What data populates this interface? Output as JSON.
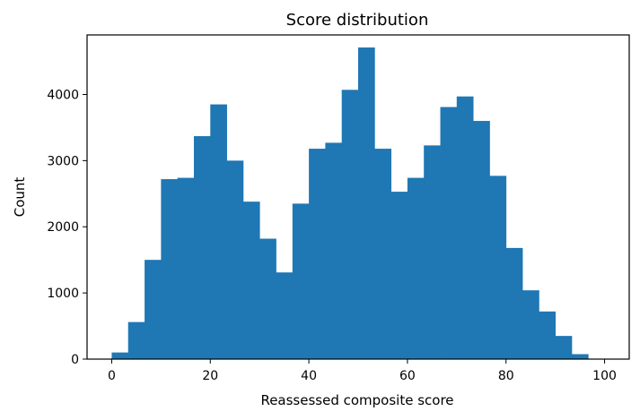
{
  "chart_data": {
    "type": "bar",
    "title": "Score distribution",
    "xlabel": "Reassessed composite score",
    "ylabel": "Count",
    "xlim": [
      -5,
      105
    ],
    "ylim": [
      0,
      4900
    ],
    "xticks": [
      0,
      20,
      40,
      60,
      80,
      100
    ],
    "yticks": [
      0,
      1000,
      2000,
      3000,
      4000
    ],
    "grid": false,
    "color": "#1f77b4",
    "bins": [
      {
        "x0": 0.0,
        "x1": 3.33,
        "count": 100
      },
      {
        "x0": 3.33,
        "x1": 6.67,
        "count": 560
      },
      {
        "x0": 6.67,
        "x1": 10.0,
        "count": 1500
      },
      {
        "x0": 10.0,
        "x1": 13.33,
        "count": 2720
      },
      {
        "x0": 13.33,
        "x1": 16.67,
        "count": 2740
      },
      {
        "x0": 16.67,
        "x1": 20.0,
        "count": 3370
      },
      {
        "x0": 20.0,
        "x1": 23.33,
        "count": 3850
      },
      {
        "x0": 23.33,
        "x1": 26.67,
        "count": 3000
      },
      {
        "x0": 26.67,
        "x1": 30.0,
        "count": 2380
      },
      {
        "x0": 30.0,
        "x1": 33.33,
        "count": 1820
      },
      {
        "x0": 33.33,
        "x1": 36.67,
        "count": 1310
      },
      {
        "x0": 36.67,
        "x1": 40.0,
        "count": 2350
      },
      {
        "x0": 40.0,
        "x1": 43.33,
        "count": 3180
      },
      {
        "x0": 43.33,
        "x1": 46.67,
        "count": 3270
      },
      {
        "x0": 46.67,
        "x1": 50.0,
        "count": 4070
      },
      {
        "x0": 50.0,
        "x1": 53.33,
        "count": 4710
      },
      {
        "x0": 53.33,
        "x1": 56.67,
        "count": 3180
      },
      {
        "x0": 56.67,
        "x1": 60.0,
        "count": 2530
      },
      {
        "x0": 60.0,
        "x1": 63.33,
        "count": 2740
      },
      {
        "x0": 63.33,
        "x1": 66.67,
        "count": 3230
      },
      {
        "x0": 66.67,
        "x1": 70.0,
        "count": 3810
      },
      {
        "x0": 70.0,
        "x1": 73.33,
        "count": 3970
      },
      {
        "x0": 73.33,
        "x1": 76.67,
        "count": 3600
      },
      {
        "x0": 76.67,
        "x1": 80.0,
        "count": 2770
      },
      {
        "x0": 80.0,
        "x1": 83.33,
        "count": 1680
      },
      {
        "x0": 83.33,
        "x1": 86.67,
        "count": 1040
      },
      {
        "x0": 86.67,
        "x1": 90.0,
        "count": 720
      },
      {
        "x0": 90.0,
        "x1": 93.33,
        "count": 350
      },
      {
        "x0": 93.33,
        "x1": 96.67,
        "count": 75
      },
      {
        "x0": 96.67,
        "x1": 100.0,
        "count": 0
      }
    ]
  }
}
